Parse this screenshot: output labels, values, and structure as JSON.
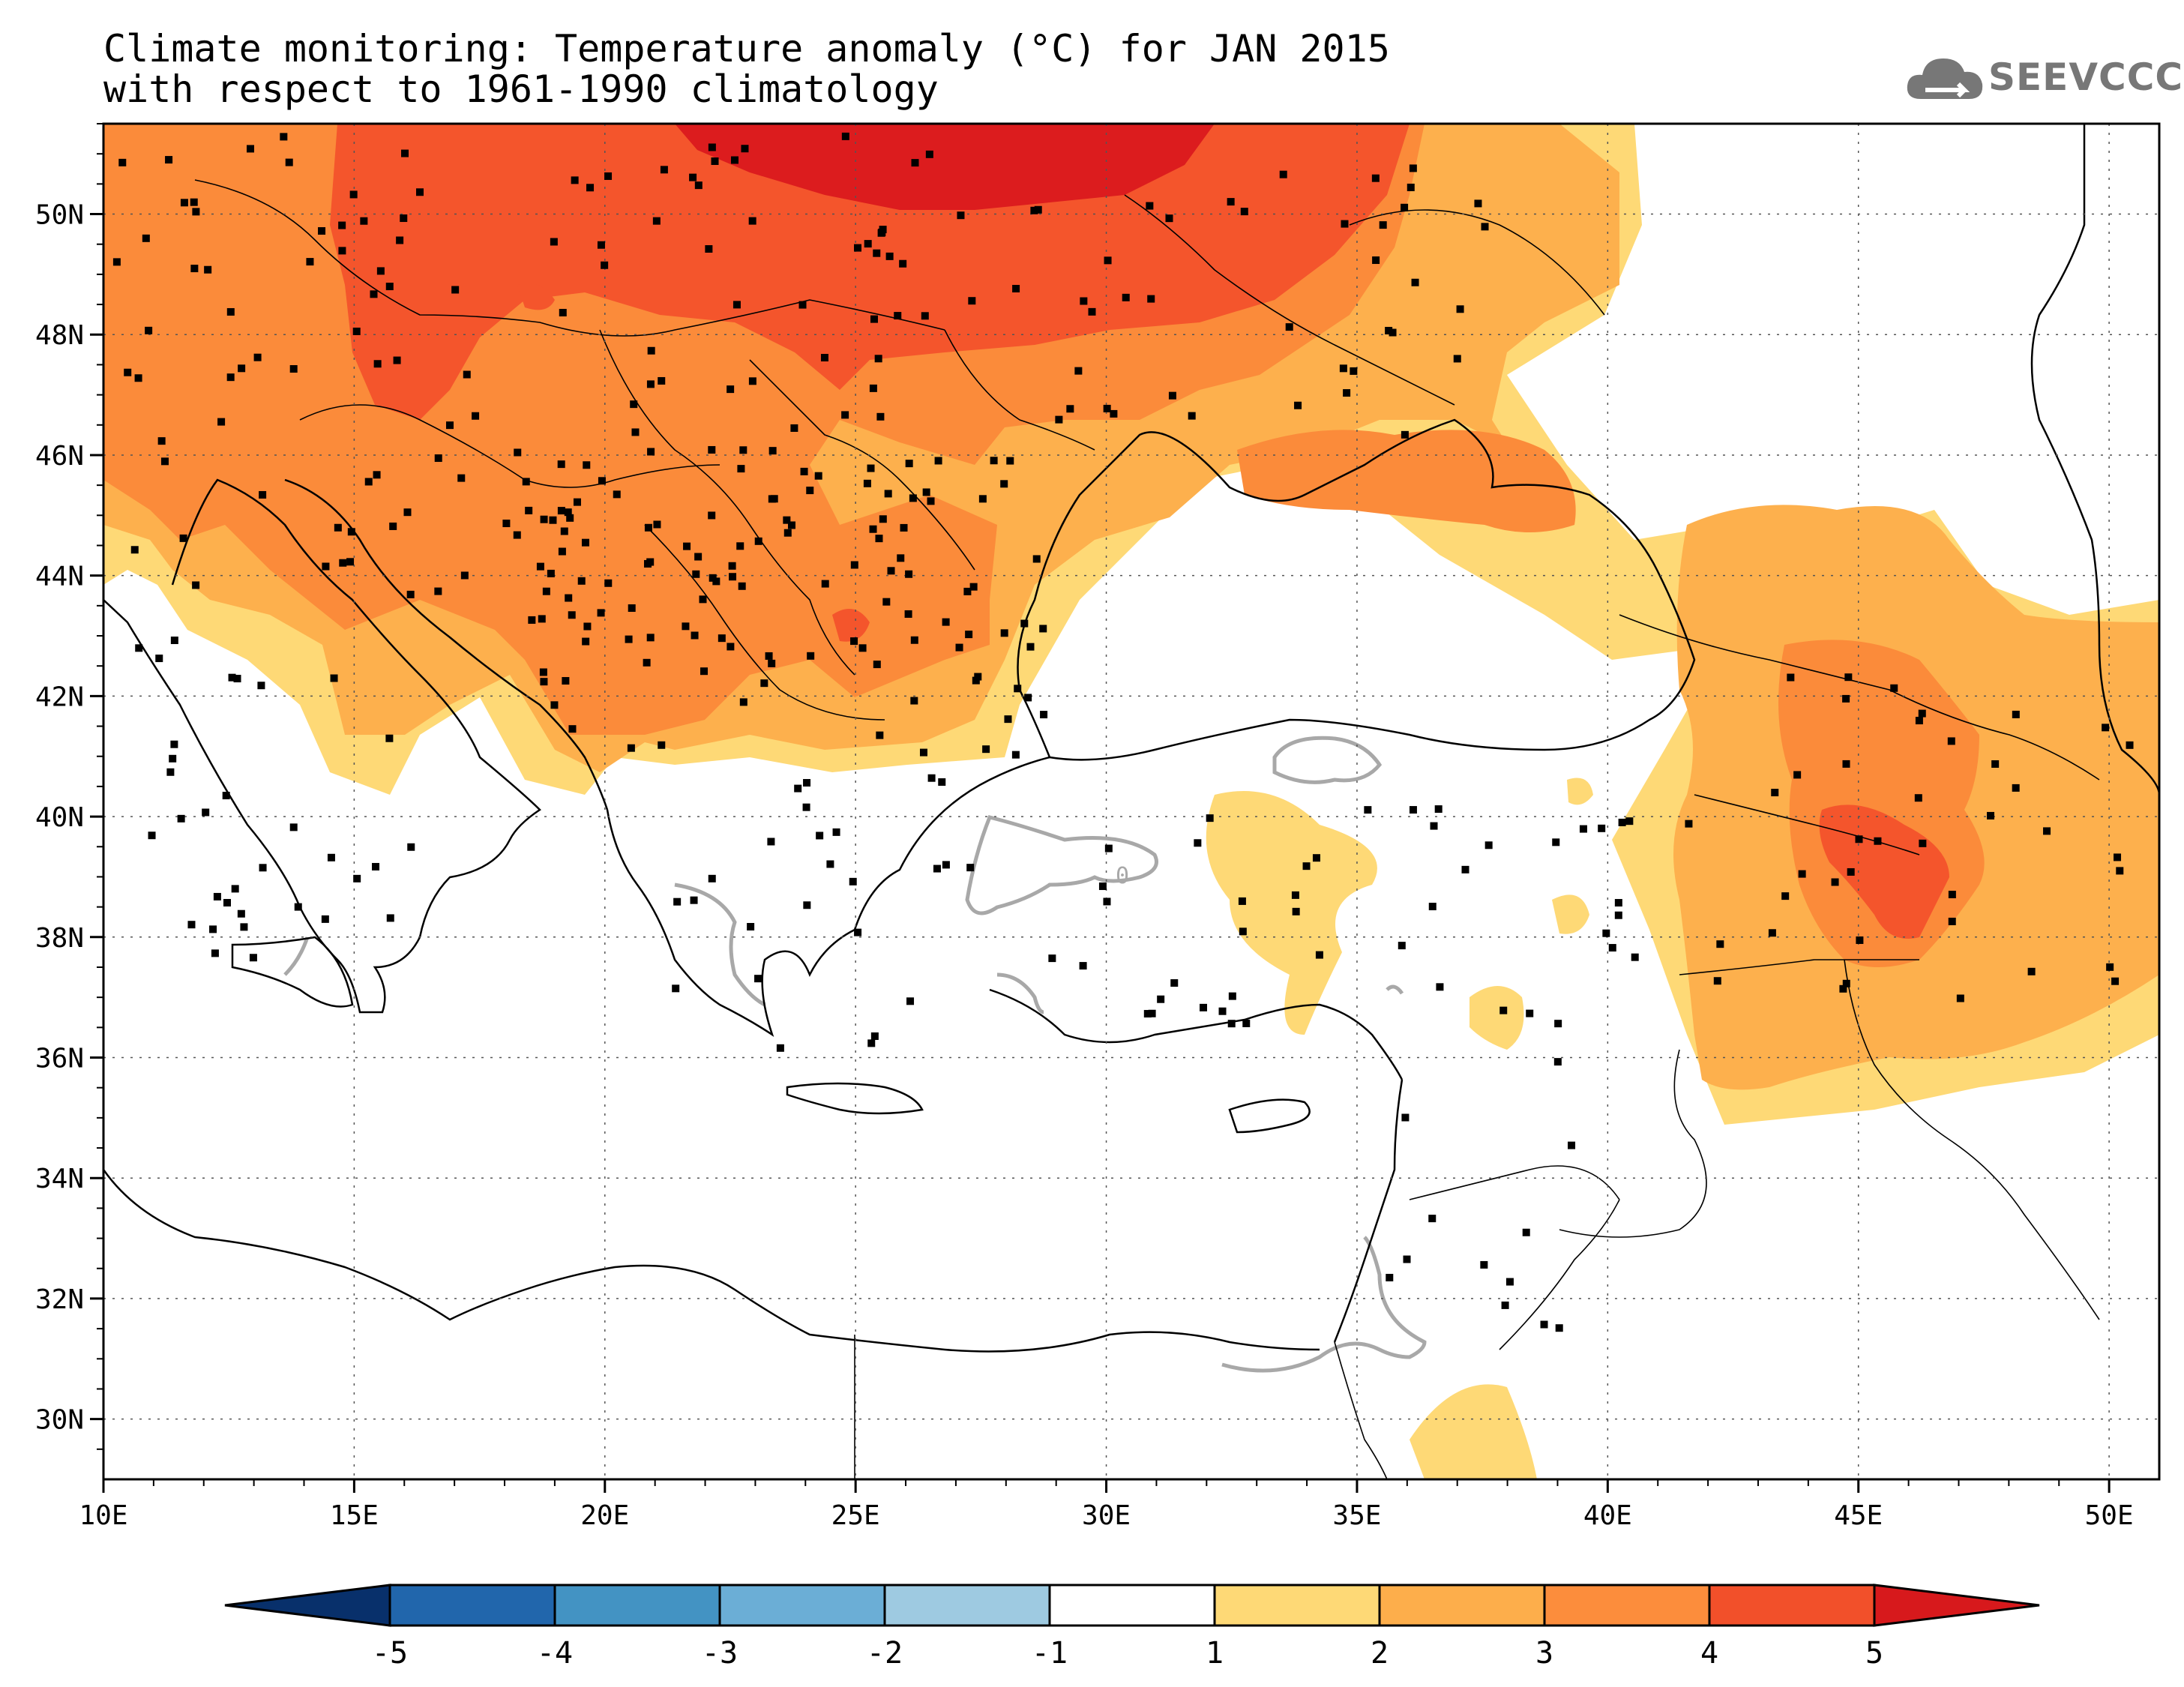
{
  "title_line1": "Climate monitoring: Temperature anomaly (°C) for JAN 2015",
  "title_line2": "with respect to 1961-1990 climatology",
  "logo": {
    "icon": "cloud-arrow-icon",
    "text": "SEEVCCC"
  },
  "map": {
    "lon_range": [
      10,
      51
    ],
    "lat_range": [
      29,
      51.5
    ],
    "lon_ticks": [
      "10E",
      "15E",
      "20E",
      "25E",
      "30E",
      "35E",
      "40E",
      "45E",
      "50E"
    ],
    "lat_ticks": [
      "30N",
      "32N",
      "34N",
      "36N",
      "38N",
      "40N",
      "42N",
      "44N",
      "46N",
      "48N",
      "50N"
    ],
    "contour_label": "0"
  },
  "colorbar": {
    "labels": [
      "-5",
      "-4",
      "-3",
      "-2",
      "-1",
      "1",
      "2",
      "3",
      "4",
      "5"
    ],
    "colors": [
      "#08306b",
      "#2166ac",
      "#4393c3",
      "#6baed6",
      "#9ecae1",
      "#ffffff",
      "#fed976",
      "#fdae4b",
      "#fc8d3c",
      "#f2502a",
      "#d7191c"
    ]
  },
  "colors": {
    "c1": "#fed976",
    "c2": "#fdb04d",
    "c3": "#fb8b3a",
    "c4": "#f4552c",
    "c5": "#dc1c1e"
  }
}
